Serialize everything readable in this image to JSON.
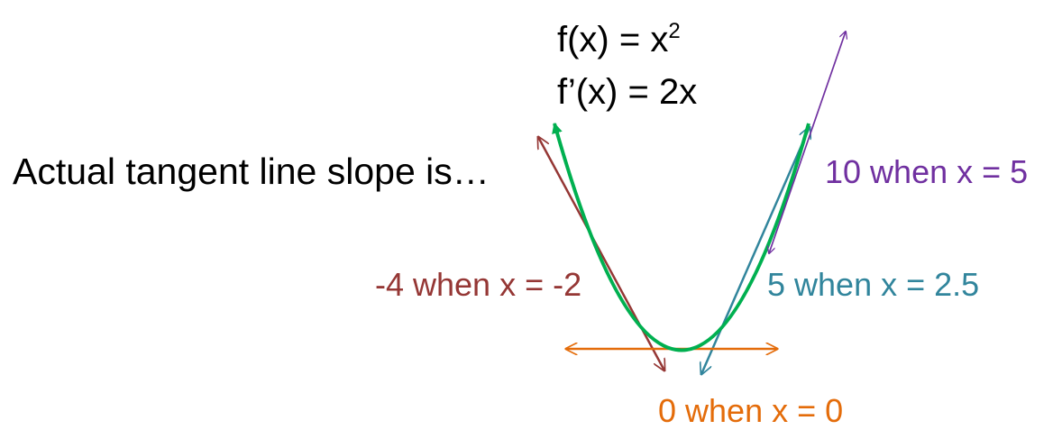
{
  "equations": {
    "f_prefix": "f(x) = x",
    "f_exponent": "2",
    "f_prime": "f’(x) = 2x"
  },
  "heading": "Actual tangent line slope is…",
  "colors": {
    "curve": "#00b050",
    "x5": "#7030a0",
    "xneg2": "#953735",
    "x2p5": "#31859c",
    "x0": "#e46c0a"
  },
  "tangent_labels": [
    {
      "text": "10 when x = 5",
      "slope": 10,
      "x": 5,
      "color": "#7030a0"
    },
    {
      "text": "-4 when x = -2",
      "slope": -4,
      "x": -2,
      "color": "#953735"
    },
    {
      "text": "5 when x = 2.5",
      "slope": 5,
      "x": 2.5,
      "color": "#31859c"
    },
    {
      "text": "0 when x = 0",
      "slope": 0,
      "x": 0,
      "color": "#e46c0a"
    }
  ]
}
